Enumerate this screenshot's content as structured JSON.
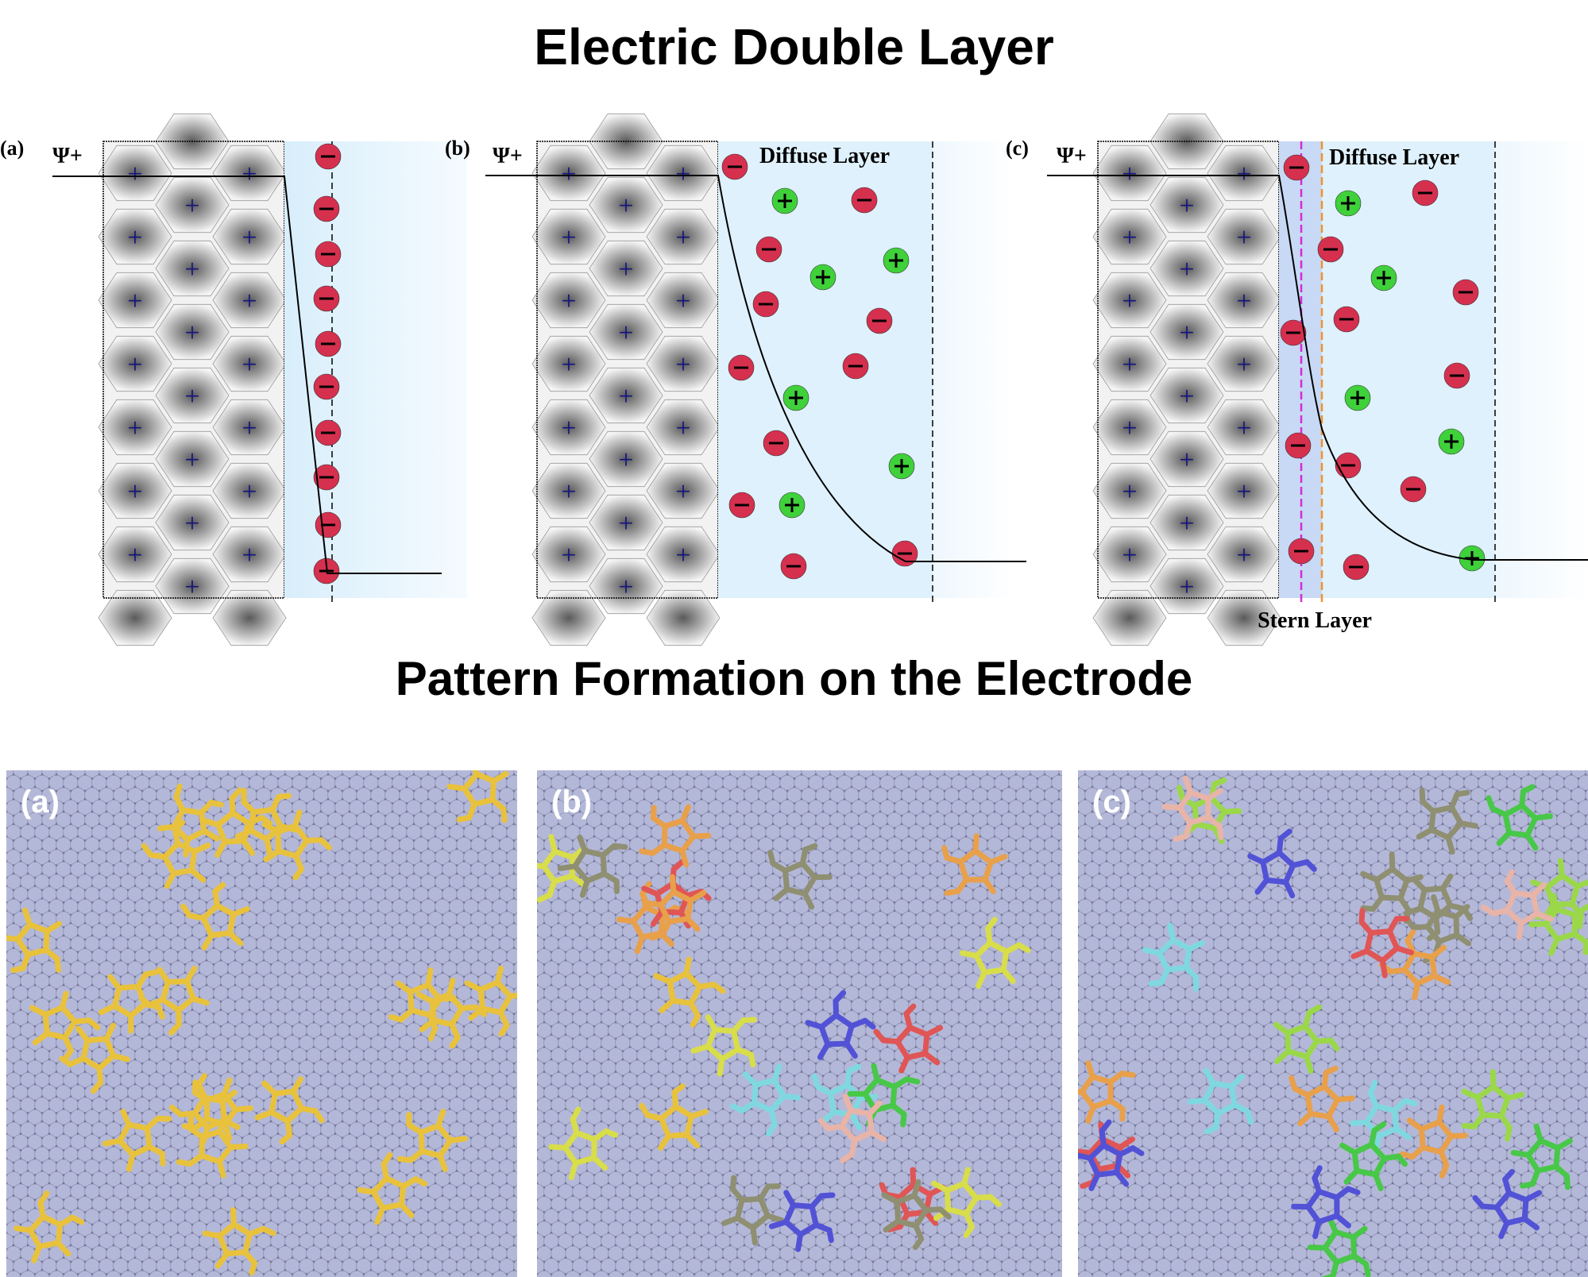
{
  "titles": {
    "top": "Electric Double Layer",
    "bottom": "Pattern Formation on the Electrode"
  },
  "edl_panels": [
    {
      "label": "(a)",
      "potential_label": "Ψ+",
      "layer_label": ""
    },
    {
      "label": "(b)",
      "potential_label": "Ψ+",
      "layer_label": "Diffuse Layer"
    },
    {
      "label": "(c)",
      "potential_label": "Ψ+",
      "layer_label": "Diffuse Layer",
      "stern_label": "Stern Layer"
    }
  ],
  "sim_panels": [
    {
      "label": "(a)"
    },
    {
      "label": "(b)"
    },
    {
      "label": "(c)"
    }
  ],
  "colors": {
    "anion": "#d6304f",
    "cation": "#3fd13a",
    "electrode_plus": "#151580",
    "solution": "#dff1fc",
    "stern": "#c8d9f5",
    "stern_line_inner": "#d62bd6",
    "stern_line_outer": "#f0932b",
    "surface_atoms": "#b4b8d8",
    "molecules": [
      "#e8c23c",
      "#e05555",
      "#5252d6",
      "#e8a04a",
      "#d8dd4a",
      "#8f8f72",
      "#48c848",
      "#e8b4a8",
      "#7fd8e0",
      "#9ad84a"
    ]
  }
}
